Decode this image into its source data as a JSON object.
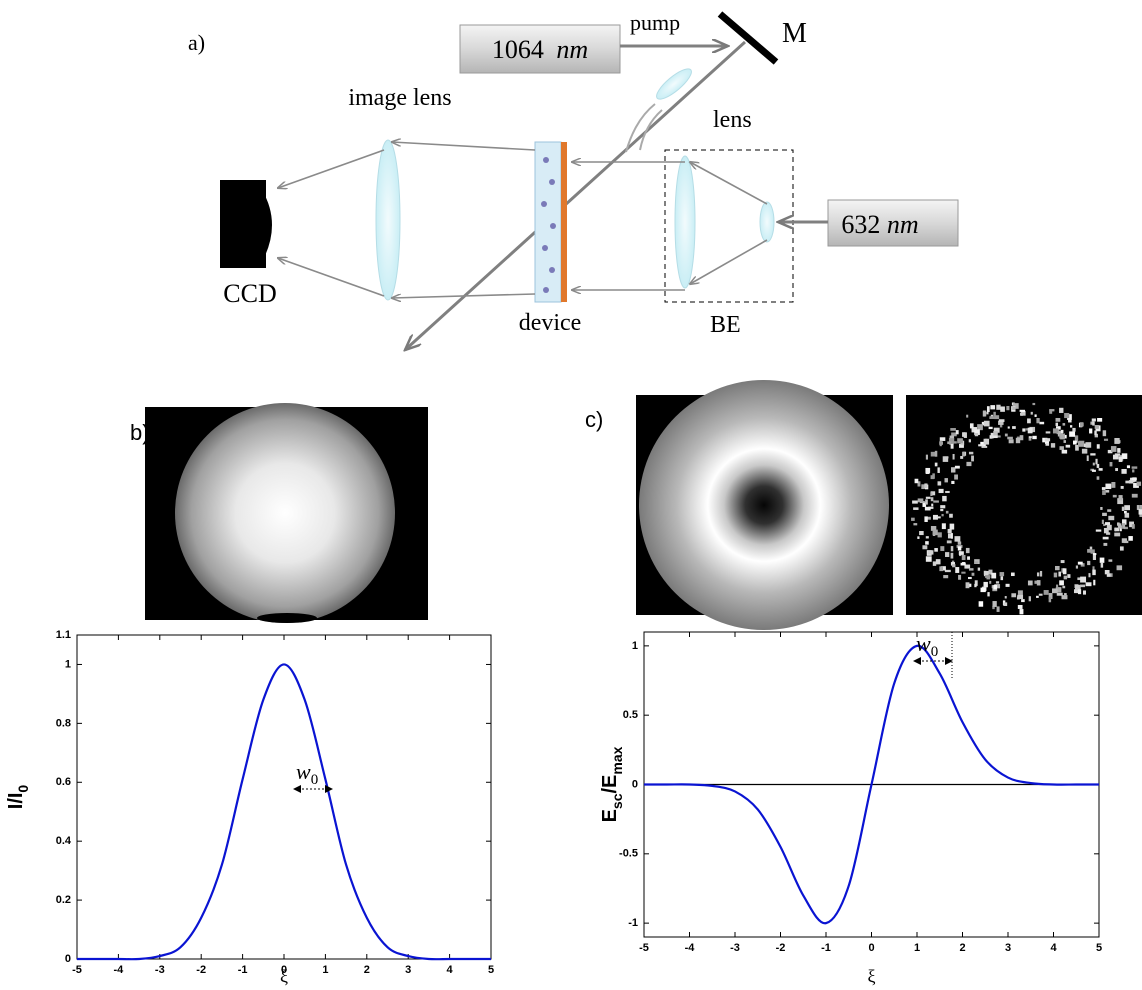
{
  "diagram": {
    "panel_label": "a)",
    "pump_source": {
      "value": "1064",
      "unit": "nm"
    },
    "pump_label": "pump",
    "mirror_label": "M",
    "lens_label": "lens",
    "image_lens_label": "image lens",
    "probe_source": {
      "value": "632",
      "unit": "nm"
    },
    "camera_label": "CCD",
    "device_label": "device",
    "expander_label": "BE"
  },
  "chart_data": [
    {
      "type": "line",
      "panel_label": "b)",
      "ylabel": [
        "I/I",
        "0"
      ],
      "xlabel": "ξ",
      "annotation": [
        "w",
        "0"
      ],
      "x": [
        -5,
        -4.5,
        -4,
        -3.5,
        -3,
        -2.5,
        -2,
        -1.5,
        -1,
        -0.5,
        0,
        0.5,
        1,
        1.5,
        2,
        2.5,
        3,
        3.5,
        4,
        4.5,
        5
      ],
      "series": [
        {
          "color": "#0a14d2",
          "values": [
            0,
            0,
            0,
            0,
            0.01,
            0.04,
            0.14,
            0.32,
            0.61,
            0.88,
            1,
            0.88,
            0.61,
            0.32,
            0.14,
            0.04,
            0.01,
            0,
            0,
            0,
            0
          ]
        }
      ],
      "xlim": [
        -5,
        5
      ],
      "ylim": [
        0,
        1.1
      ],
      "xticks": [
        -5,
        -4,
        -3,
        -2,
        -1,
        0,
        1,
        2,
        3,
        4,
        5
      ],
      "yticks": [
        0,
        0.2,
        0.4,
        0.6,
        0.8,
        1,
        1.1
      ]
    },
    {
      "type": "line",
      "panel_label": "c)",
      "ylabel": [
        "E",
        "sc",
        "/E",
        "max"
      ],
      "xlabel": "ξ",
      "annotation": [
        "w",
        "0"
      ],
      "x": [
        -5,
        -4.5,
        -4,
        -3.5,
        -3,
        -2.5,
        -2,
        -1.5,
        -1,
        -0.5,
        0,
        0.5,
        1,
        1.5,
        2,
        2.5,
        3,
        3.5,
        4,
        4.5,
        5
      ],
      "series": [
        {
          "color": "#0a14d2",
          "values": [
            0,
            0,
            0,
            -0.01,
            -0.05,
            -0.18,
            -0.45,
            -0.8,
            -1,
            -0.73,
            0,
            0.73,
            1,
            0.8,
            0.45,
            0.18,
            0.05,
            0.01,
            0,
            0,
            0
          ]
        }
      ],
      "hline": 0,
      "xlim": [
        -5,
        5
      ],
      "ylim": [
        -1.1,
        1.1
      ],
      "xticks": [
        -5,
        -4,
        -3,
        -2,
        -1,
        0,
        1,
        2,
        3,
        4,
        5
      ],
      "yticks": [
        -1,
        -0.5,
        0,
        0.5,
        1
      ]
    }
  ]
}
